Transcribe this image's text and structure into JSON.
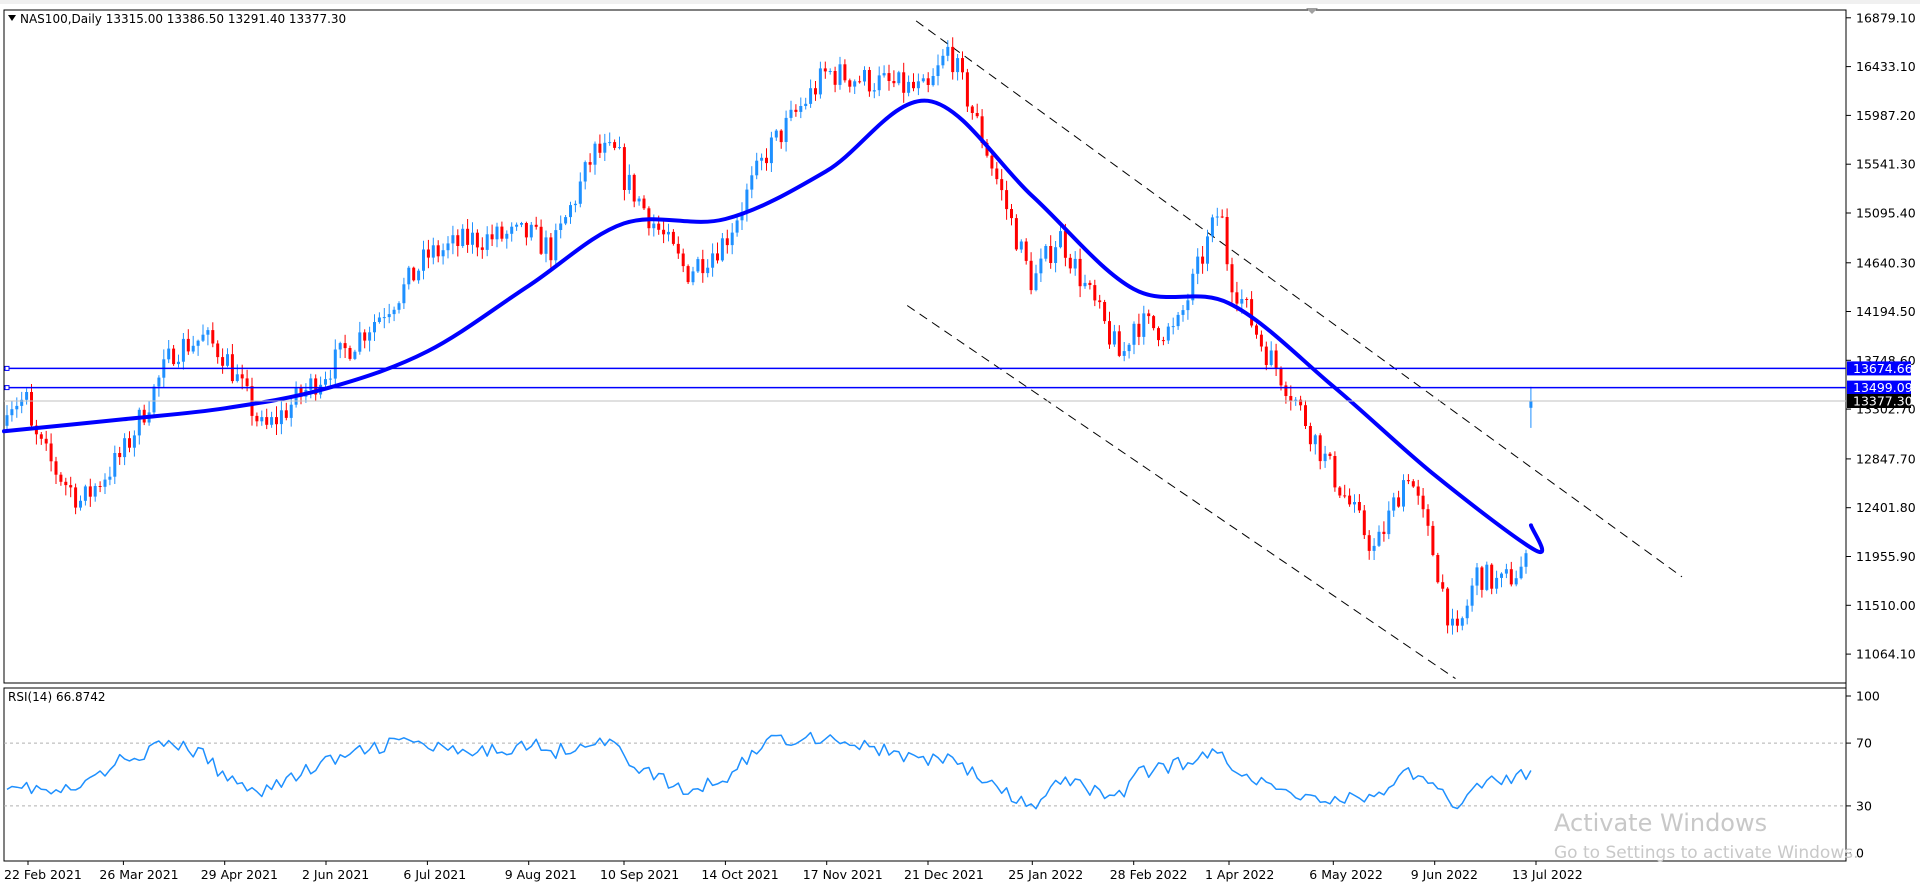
{
  "header": {
    "symbol_line": "NAS100,Daily  13315.00 13386.50 13291.40 13377.30",
    "rsi_line": "RSI(14) 66.8742"
  },
  "watermark": {
    "title": "Activate Windows",
    "subtitle": "Go to Settings to activate Windows."
  },
  "colors": {
    "bull": "#1e90ff",
    "bear": "#ff0000",
    "ma": "#0000ff",
    "hline": "#0000ff",
    "rsi": "#1e90ff",
    "channel": "#000000",
    "current_tag_bg": "#000000"
  },
  "chart_data": [
    {
      "type": "candlestick",
      "symbol": "NAS100",
      "timeframe": "Daily",
      "title": "NAS100,Daily",
      "last_bar": {
        "open": 13315.0,
        "high": 13386.5,
        "low": 13291.4,
        "close": 13377.3
      },
      "ylim": [
        10800,
        16950
      ],
      "y_ticks": [
        16879.1,
        16433.1,
        15987.2,
        15541.3,
        15095.4,
        14640.3,
        14194.5,
        13748.6,
        13302.7,
        12847.7,
        12401.8,
        11955.9,
        11510.0,
        11064.1
      ],
      "y_tick_labels": [
        "16879.10",
        "16433.10",
        "15987.20",
        "15541.30",
        "15095.40",
        "14640.30",
        "14194.50",
        "13748.60",
        "13302.70",
        "12847.70",
        "12401.80",
        "11955.90",
        "11510.00",
        "11064.10"
      ],
      "x_tick_labels": [
        "22 Feb 2021",
        "26 Mar 2021",
        "29 Apr 2021",
        "2 Jun 2021",
        "6 Jul 2021",
        "9 Aug 2021",
        "10 Sep 2021",
        "14 Oct 2021",
        "17 Nov 2021",
        "21 Dec 2021",
        "25 Jan 2022",
        "28 Feb 2022",
        "1 Apr 2022",
        "6 May 2022",
        "9 Jun 2022",
        "13 Jul 2022"
      ],
      "horizontal_lines": [
        {
          "label": "13674.66",
          "value": 13674.66
        },
        {
          "label": "13499.09",
          "value": 13499.09
        }
      ],
      "current_price": {
        "label": "13377.30",
        "value": 13377.3
      },
      "moving_average": {
        "x": [
          "22 Feb 2021",
          "26 Mar 2021",
          "29 Apr 2021",
          "2 Jun 2021",
          "6 Jul 2021",
          "9 Aug 2021",
          "10 Sep 2021",
          "14 Oct 2021",
          "17 Nov 2021",
          "21 Dec 2021",
          "25 Jan 2022",
          "28 Feb 2022",
          "1 Apr 2022",
          "6 May 2022",
          "9 Jun 2022",
          "13 Jul 2022",
          "29 Jul 2022"
        ],
        "values": [
          13100,
          13210,
          13310,
          13490,
          13830,
          14430,
          15000,
          15040,
          15480,
          16120,
          15250,
          14400,
          14270,
          13510,
          12700,
          12010,
          12240
        ]
      },
      "channel_lines": [
        {
          "from": [
            "17 Dec 2021",
            16850
          ],
          "to": [
            "31 Aug 2022",
            11770
          ]
        },
        {
          "from": [
            "14 Dec 2021",
            14250
          ],
          "to": [
            "16 Jun 2022",
            10840
          ]
        }
      ],
      "price_path": {
        "x": [
          "22 Feb 2021",
          "3 Mar 2021",
          "12 Mar 2021",
          "26 Mar 2021",
          "12 Apr 2021",
          "22 Apr 2021",
          "29 Apr 2021",
          "12 May 2021",
          "2 Jun 2021",
          "28 Jun 2021",
          "6 Jul 2021",
          "20 Jul 2021",
          "9 Aug 2021",
          "17 Aug 2021",
          "31 Aug 2021",
          "8 Sep 2021",
          "10 Sep 2021",
          "1 Oct 2021",
          "14 Oct 2021",
          "28 Oct 2021",
          "17 Nov 2021",
          "21 Dec 2021",
          "28 Dec 2021",
          "10 Jan 2022",
          "25 Jan 2022",
          "3 Feb 2022",
          "24 Feb 2022",
          "28 Feb 2022",
          "14 Mar 2022",
          "29 Mar 2022",
          "1 Apr 2022",
          "12 Apr 2022",
          "21 Apr 2022",
          "6 May 2022",
          "20 May 2022",
          "31 May 2022",
          "9 Jun 2022",
          "16 Jun 2022",
          "23 Jun 2022",
          "1 Jul 2022",
          "13 Jul 2022",
          "20 Jul 2022",
          "29 Jul 2022"
        ],
        "close": [
          13150,
          12750,
          12450,
          12900,
          13850,
          13950,
          13800,
          13100,
          13650,
          14400,
          14700,
          14850,
          14900,
          14750,
          15650,
          15630,
          15420,
          14550,
          14850,
          15650,
          16380,
          16200,
          16600,
          15650,
          14450,
          14900,
          13750,
          14100,
          14000,
          15150,
          14550,
          13900,
          13500,
          12700,
          12000,
          12750,
          11950,
          11150,
          11800,
          11700,
          11950,
          12600,
          13377
        ]
      }
    },
    {
      "type": "line",
      "name": "RSI(14)",
      "last_value": 66.8742,
      "ylim": [
        0,
        100
      ],
      "y_ticks": [
        100,
        70,
        30,
        0
      ],
      "levels": [
        70,
        30
      ],
      "x": [
        "22 Feb 2021",
        "3 Mar 2021",
        "12 Mar 2021",
        "26 Mar 2021",
        "12 Apr 2021",
        "22 Apr 2021",
        "29 Apr 2021",
        "12 May 2021",
        "2 Jun 2021",
        "28 Jun 2021",
        "6 Jul 2021",
        "20 Jul 2021",
        "9 Aug 2021",
        "17 Aug 2021",
        "31 Aug 2021",
        "8 Sep 2021",
        "10 Sep 2021",
        "1 Oct 2021",
        "14 Oct 2021",
        "28 Oct 2021",
        "17 Nov 2021",
        "21 Dec 2021",
        "28 Dec 2021",
        "10 Jan 2022",
        "25 Jan 2022",
        "3 Feb 2022",
        "24 Feb 2022",
        "28 Feb 2022",
        "14 Mar 2022",
        "29 Mar 2022",
        "1 Apr 2022",
        "12 Apr 2022",
        "21 Apr 2022",
        "6 May 2022",
        "20 May 2022",
        "31 May 2022",
        "9 Jun 2022",
        "16 Jun 2022",
        "23 Jun 2022",
        "1 Jul 2022",
        "13 Jul 2022",
        "20 Jul 2022",
        "29 Jul 2022"
      ],
      "values": [
        45,
        38,
        42,
        60,
        70,
        62,
        48,
        40,
        58,
        72,
        68,
        62,
        70,
        64,
        72,
        68,
        60,
        38,
        48,
        72,
        74,
        58,
        62,
        44,
        28,
        46,
        36,
        50,
        56,
        64,
        58,
        44,
        38,
        34,
        36,
        52,
        40,
        30,
        46,
        44,
        54,
        64,
        66.87
      ]
    }
  ]
}
